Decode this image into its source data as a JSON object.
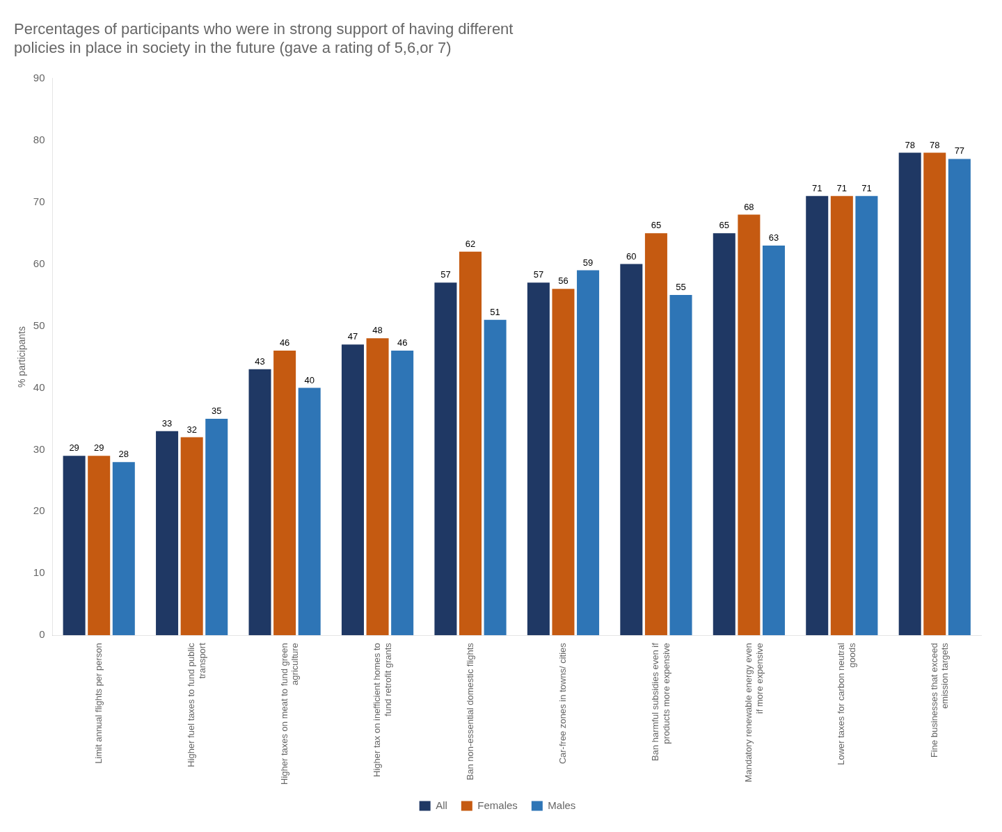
{
  "chart_data": {
    "type": "bar",
    "title": "Percentages of participants who were in strong support of having different\npolicies in place in society in the future (gave a rating of 5,6,or 7)",
    "ylabel": "% participants",
    "categories": [
      "Limit annual flights per person",
      "Higher fuel taxes to fund public\ntransport",
      "Higher taxes on meat to fund green\nagriculture",
      "Higher tax on inefficient homes to\nfund retrofit grants",
      "Ban non-essential domestic flights",
      "Car-free zones in towns/ cities",
      "Ban harmful subsidies even if\nproducts more expensive",
      "Mandatory renewable energy even\nif more expensive",
      "Lower taxes for carbon neutral\ngoods",
      "Fine businesses that exceed\nemission targets"
    ],
    "series": [
      {
        "name": "All",
        "color": "#1f3864",
        "values": [
          29,
          33,
          43,
          47,
          57,
          57,
          60,
          65,
          71,
          78
        ]
      },
      {
        "name": "Females",
        "color": "#c55a11",
        "values": [
          29,
          32,
          46,
          48,
          62,
          56,
          65,
          68,
          71,
          78
        ]
      },
      {
        "name": "Males",
        "color": "#2e75b6",
        "values": [
          28,
          35,
          40,
          46,
          51,
          59,
          55,
          63,
          71,
          77
        ]
      }
    ],
    "ylim": [
      0,
      90
    ],
    "yticks": [
      0,
      10,
      20,
      30,
      40,
      50,
      60,
      70,
      80,
      90
    ],
    "grid": false,
    "legend": "bottom",
    "data_labels": true
  }
}
